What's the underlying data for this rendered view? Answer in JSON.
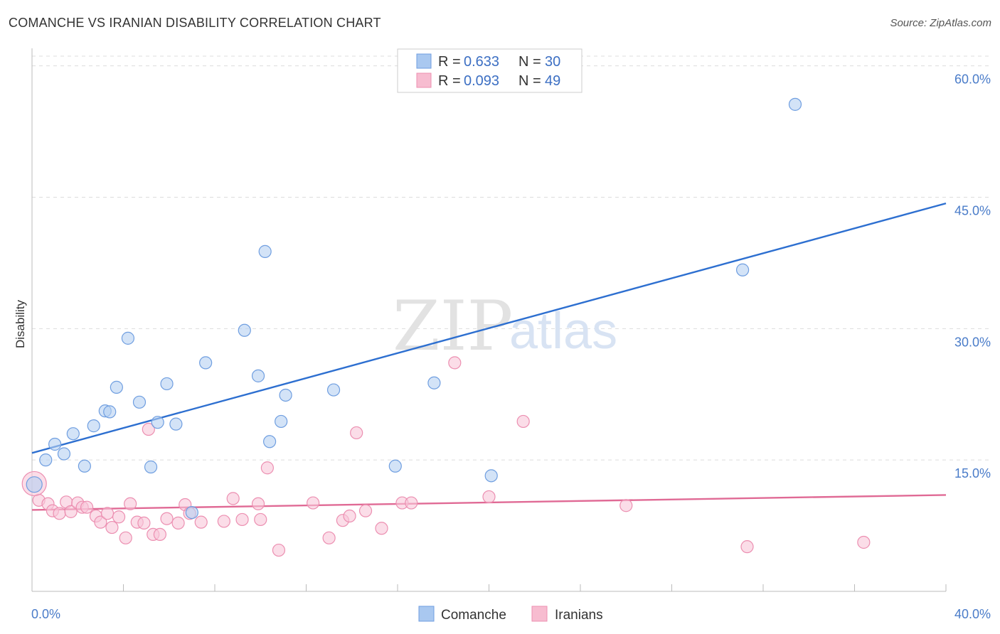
{
  "header": {
    "title": "COMANCHE VS IRANIAN DISABILITY CORRELATION CHART",
    "source": "Source: ZipAtlas.com"
  },
  "watermark": {
    "zip": "ZIP",
    "atlas": "atlas"
  },
  "legend": {
    "rows": [
      {
        "r_label": "R = ",
        "r_value": "0.633",
        "n_label": "N = ",
        "n_value": "30",
        "color": "#a9c8f0"
      },
      {
        "r_label": "R = ",
        "r_value": "0.093",
        "n_label": "N = ",
        "n_value": "49",
        "color": "#f7bcd0"
      }
    ]
  },
  "bottom_legend": [
    {
      "label": "Comanche",
      "color": "#a9c8f0"
    },
    {
      "label": "Iranians",
      "color": "#f7bcd0"
    }
  ],
  "colors": {
    "comanche_fill": "#b5d0f2",
    "comanche_stroke": "#6f9ee0",
    "comanche_line": "#2d6fd0",
    "iranian_fill": "#f9c7d8",
    "iranian_stroke": "#ec8fb1",
    "iranian_line": "#e06a95",
    "tick_text": "#4a7cc9",
    "grid": "#dddddd"
  },
  "chart_data": {
    "type": "scatter",
    "title": "COMANCHE VS IRANIAN DISABILITY CORRELATION CHART",
    "xlabel": "",
    "ylabel": "Disability",
    "xlim": [
      0,
      40
    ],
    "ylim": [
      0,
      62
    ],
    "x_ticks": [
      "0.0%",
      "40.0%"
    ],
    "y_ticks": [
      {
        "value": 15,
        "label": "15.0%"
      },
      {
        "value": 30,
        "label": "30.0%"
      },
      {
        "value": 45,
        "label": "45.0%"
      },
      {
        "value": 60,
        "label": "60.0%"
      }
    ],
    "grid": "horizontal dashed",
    "legend_position": "top-center",
    "series": [
      {
        "name": "Comanche",
        "points": [
          [
            0.1,
            12.2
          ],
          [
            0.6,
            15.0
          ],
          [
            1.0,
            16.8
          ],
          [
            1.4,
            15.7
          ],
          [
            1.8,
            18.0
          ],
          [
            2.3,
            14.3
          ],
          [
            2.7,
            18.9
          ],
          [
            3.2,
            20.6
          ],
          [
            3.4,
            20.5
          ],
          [
            3.7,
            23.3
          ],
          [
            4.2,
            28.9
          ],
          [
            4.7,
            21.6
          ],
          [
            5.2,
            14.2
          ],
          [
            5.5,
            19.3
          ],
          [
            5.9,
            23.7
          ],
          [
            6.3,
            19.1
          ],
          [
            7.6,
            26.1
          ],
          [
            9.3,
            29.8
          ],
          [
            9.9,
            24.6
          ],
          [
            10.2,
            38.8
          ],
          [
            10.4,
            17.1
          ],
          [
            10.9,
            19.4
          ],
          [
            11.1,
            22.4
          ],
          [
            13.2,
            23.0
          ],
          [
            15.9,
            14.3
          ],
          [
            17.6,
            23.8
          ],
          [
            20.1,
            13.2
          ],
          [
            31.1,
            36.7
          ],
          [
            33.4,
            55.6
          ],
          [
            7.0,
            9.0
          ]
        ],
        "trend": {
          "x": [
            0,
            40
          ],
          "y": [
            15.8,
            44.3
          ]
        }
      },
      {
        "name": "Iranians",
        "points": [
          [
            0.3,
            10.4
          ],
          [
            0.7,
            10.0
          ],
          [
            0.9,
            9.2
          ],
          [
            1.2,
            8.9
          ],
          [
            1.5,
            10.2
          ],
          [
            1.7,
            9.1
          ],
          [
            2.0,
            10.1
          ],
          [
            2.2,
            9.6
          ],
          [
            2.4,
            9.6
          ],
          [
            2.8,
            8.6
          ],
          [
            3.0,
            7.9
          ],
          [
            3.3,
            8.9
          ],
          [
            3.5,
            7.3
          ],
          [
            3.8,
            8.5
          ],
          [
            4.1,
            6.1
          ],
          [
            4.3,
            10.0
          ],
          [
            4.6,
            7.9
          ],
          [
            4.9,
            7.8
          ],
          [
            5.1,
            18.5
          ],
          [
            5.3,
            6.5
          ],
          [
            5.6,
            6.5
          ],
          [
            5.9,
            8.3
          ],
          [
            6.4,
            7.8
          ],
          [
            6.7,
            9.9
          ],
          [
            6.9,
            8.9
          ],
          [
            7.4,
            7.9
          ],
          [
            8.4,
            8.0
          ],
          [
            8.8,
            10.6
          ],
          [
            9.2,
            8.2
          ],
          [
            9.9,
            10.0
          ],
          [
            10.0,
            8.2
          ],
          [
            10.3,
            14.1
          ],
          [
            10.8,
            4.7
          ],
          [
            12.3,
            10.1
          ],
          [
            13.0,
            6.1
          ],
          [
            13.6,
            8.1
          ],
          [
            13.9,
            8.6
          ],
          [
            14.2,
            18.1
          ],
          [
            14.6,
            9.2
          ],
          [
            15.3,
            7.2
          ],
          [
            16.2,
            10.1
          ],
          [
            16.6,
            10.1
          ],
          [
            18.5,
            26.1
          ],
          [
            20.0,
            10.8
          ],
          [
            21.5,
            19.4
          ],
          [
            26.0,
            9.8
          ],
          [
            31.3,
            5.1
          ],
          [
            36.4,
            5.6
          ],
          [
            0.1,
            12.3
          ]
        ],
        "trend": {
          "x": [
            0,
            40
          ],
          "y": [
            9.3,
            11.0
          ]
        }
      }
    ]
  }
}
